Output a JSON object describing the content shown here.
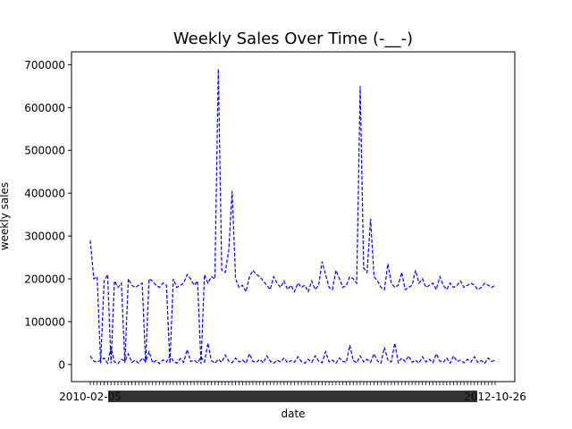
{
  "chart_data": {
    "type": "line",
    "title": "Weekly Sales Over Time (-__-)",
    "xlabel": "date",
    "ylabel": "weekly sales",
    "ylim": [
      -40000,
      730000
    ],
    "yticks": [
      0,
      100000,
      200000,
      300000,
      400000,
      500000,
      600000,
      700000
    ],
    "grid": false,
    "line_color": "#0000ff",
    "line_style": "dashed",
    "x_tick_labels_note": "dense overlapping date tick labels",
    "x_first_tick_label": "2010-02-05",
    "x_last_tick_label": "2012-10-26",
    "series": [
      {
        "values": [
          290000,
          200000,
          205000,
          3000,
          195000,
          210000,
          2500,
          195000,
          180000,
          190000,
          4000,
          200000,
          185000,
          180000,
          185000,
          190000,
          4000,
          200000,
          195000,
          185000,
          180000,
          190000,
          185000,
          3000,
          200000,
          180000,
          185000,
          190000,
          210000,
          200000,
          185000,
          195000,
          2000,
          210000,
          190000,
          205000,
          200000,
          690000,
          220000,
          215000,
          265000,
          405000,
          200000,
          180000,
          185000,
          170000,
          205000,
          220000,
          210000,
          205000,
          195000,
          185000,
          175000,
          205000,
          190000,
          180000,
          195000,
          175000,
          185000,
          170000,
          190000,
          180000,
          185000,
          170000,
          195000,
          175000,
          185000,
          240000,
          210000,
          180000,
          175000,
          220000,
          200000,
          180000,
          185000,
          205000,
          200000,
          190000,
          650000,
          225000,
          215000,
          340000,
          205000,
          195000,
          180000,
          175000,
          235000,
          190000,
          180000,
          185000,
          215000,
          175000,
          180000,
          185000,
          220000,
          190000,
          200000,
          180000,
          185000,
          190000,
          175000,
          205000,
          185000,
          175000,
          190000,
          180000,
          185000,
          195000,
          180000,
          185000,
          190000,
          185000,
          175000,
          180000,
          190000,
          185000,
          180000,
          185000
        ]
      },
      {
        "values": [
          20000,
          8000,
          5000,
          10000,
          15000,
          3000,
          40000,
          6000,
          2000,
          12000,
          8000,
          25000,
          5000,
          10000,
          3000,
          15000,
          7000,
          30000,
          4000,
          9000,
          2000,
          11000,
          6000,
          20000,
          8000,
          3000,
          14000,
          5000,
          35000,
          7000,
          10000,
          4000,
          18000,
          6000,
          50000,
          9000,
          3000,
          12000,
          5000,
          22000,
          8000,
          4000,
          15000,
          6000,
          10000,
          3000,
          25000,
          7000,
          5000,
          12000,
          4000,
          20000,
          8000,
          3000,
          10000,
          6000,
          15000,
          4000,
          9000,
          5000,
          18000,
          7000,
          3000,
          12000,
          5000,
          20000,
          8000,
          4000,
          30000,
          6000,
          10000,
          3000,
          15000,
          7000,
          5000,
          45000,
          9000,
          4000,
          20000,
          6000,
          12000,
          5000,
          25000,
          8000,
          3000,
          40000,
          10000,
          6000,
          50000,
          4000,
          15000,
          7000,
          20000,
          5000,
          10000,
          3000,
          18000,
          6000,
          12000,
          4000,
          25000,
          8000,
          5000,
          15000,
          3000,
          20000,
          7000,
          10000,
          4000,
          12000,
          6000,
          18000,
          5000,
          9000,
          3000,
          15000,
          7000,
          10000
        ]
      }
    ]
  }
}
